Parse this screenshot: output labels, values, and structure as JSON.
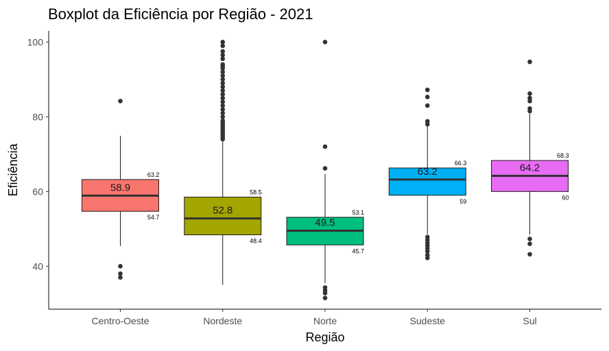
{
  "chart_data": {
    "type": "boxplot",
    "title": "Boxplot da Eficiência por Região - 2021",
    "xlabel": "Região",
    "ylabel": "Eficiência",
    "ylim": [
      28.5,
      103
    ],
    "yticks": [
      40,
      60,
      80,
      100
    ],
    "grid": false,
    "legend": "none",
    "categories": [
      "Centro-Oeste",
      "Nordeste",
      "Norte",
      "Sudeste",
      "Sul"
    ],
    "boxes": [
      {
        "category": "Centro-Oeste",
        "color": "#F8766D",
        "whisker_low": 45.4,
        "q1": 54.7,
        "median": 58.9,
        "q3": 63.2,
        "whisker_high": 74.9,
        "median_label": "58.9",
        "q1_label": "54.7",
        "q3_label": "63.2",
        "outliers": [
          84.2,
          40.0,
          38.0,
          37.0
        ]
      },
      {
        "category": "Nordeste",
        "color": "#A3A500",
        "whisker_low": 35.0,
        "q1": 48.4,
        "median": 52.8,
        "q3": 58.5,
        "whisker_high": 73.5,
        "median_label": "52.8",
        "q1_label": "48.4",
        "q3_label": "58.5",
        "outliers": [
          100.0,
          99.0,
          97.5,
          96.5,
          95.5,
          94.0,
          93.5,
          93.0,
          92.0,
          91.0,
          90.0,
          89.0,
          88.0,
          87.0,
          86.0,
          85.0,
          84.0,
          83.0,
          82.0,
          81.0,
          80.0,
          79.0,
          78.5,
          78.0,
          77.5,
          77.0,
          76.5,
          76.0,
          75.5,
          75.0,
          74.5,
          74.0
        ]
      },
      {
        "category": "Norte",
        "color": "#00BF7D",
        "whisker_low": 35.5,
        "q1": 45.7,
        "median": 49.5,
        "q3": 53.1,
        "whisker_high": 64.7,
        "median_label": "49.5",
        "q1_label": "45.7",
        "q3_label": "53.1",
        "outliers": [
          100.0,
          72.0,
          66.2,
          34.3,
          33.5,
          32.8,
          31.5
        ]
      },
      {
        "category": "Sudeste",
        "color": "#00B0F6",
        "whisker_low": 48.5,
        "q1": 59.0,
        "median": 63.2,
        "q3": 66.3,
        "whisker_high": 77.5,
        "median_label": "63.2",
        "q1_label": "59",
        "q3_label": "66.3",
        "outliers": [
          87.2,
          85.3,
          83.0,
          78.8,
          78.0,
          47.8,
          47.0,
          46.2,
          45.5,
          44.8,
          44.0,
          43.0,
          42.2
        ]
      },
      {
        "category": "Sul",
        "color": "#E76BF3",
        "whisker_low": 48.5,
        "q1": 60.0,
        "median": 64.2,
        "q3": 68.3,
        "whisker_high": 80.8,
        "median_label": "64.2",
        "q1_label": "60",
        "q3_label": "68.3",
        "outliers": [
          94.7,
          86.2,
          85.0,
          84.2,
          82.2,
          81.5,
          47.3,
          46.0,
          43.2
        ]
      }
    ]
  }
}
